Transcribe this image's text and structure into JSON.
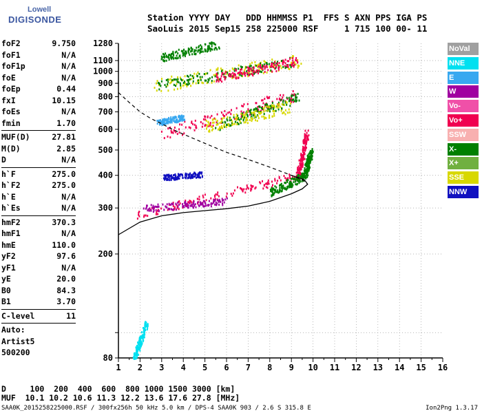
{
  "logo": {
    "line1": "Lowell",
    "line2": "DIGISONDE"
  },
  "header": {
    "line1": "Station YYYY DAY   DDD HHMMSS P1  FFS S AXN PPS IGA PS",
    "line2": "SaoLuis 2015 Sep15 258 225000 RSF     1 715 100 00- 11"
  },
  "params": [
    {
      "k": "foF2",
      "v": "9.750"
    },
    {
      "k": "foF1",
      "v": "N/A"
    },
    {
      "k": "foF1p",
      "v": "N/A"
    },
    {
      "k": "foE",
      "v": "N/A"
    },
    {
      "k": "foEp",
      "v": "0.44"
    },
    {
      "k": "fxI",
      "v": "10.15"
    },
    {
      "k": "foEs",
      "v": "N/A"
    },
    {
      "k": "fmin",
      "v": "1.70"
    },
    {
      "sep": true
    },
    {
      "k": "MUF(D)",
      "v": "27.81"
    },
    {
      "k": "M(D)",
      "v": "2.85"
    },
    {
      "k": "D",
      "v": "N/A"
    },
    {
      "sep": true
    },
    {
      "k": "h`F",
      "v": "275.0"
    },
    {
      "k": "h`F2",
      "v": "275.0"
    },
    {
      "k": "h`E",
      "v": "N/A"
    },
    {
      "k": "h`Es",
      "v": "N/A"
    },
    {
      "sep": true
    },
    {
      "k": "hmF2",
      "v": "370.3"
    },
    {
      "k": "hmF1",
      "v": "N/A"
    },
    {
      "k": "hmE",
      "v": "110.0"
    },
    {
      "k": "yF2",
      "v": "97.6"
    },
    {
      "k": "yF1",
      "v": "N/A"
    },
    {
      "k": "yE",
      "v": "20.0"
    },
    {
      "k": "B0",
      "v": "84.3"
    },
    {
      "k": "B1",
      "v": "3.70"
    },
    {
      "sep": true
    },
    {
      "k": "C-level",
      "v": "11"
    },
    {
      "sep": true
    },
    {
      "k": "Auto:",
      "v": ""
    },
    {
      "k": "Artist5",
      "v": ""
    },
    {
      "k": "500200",
      "v": ""
    }
  ],
  "legend": [
    {
      "name": "NoVal",
      "color": "#a0a0a0"
    },
    {
      "name": "NNE",
      "color": "#00e0f0"
    },
    {
      "name": "E",
      "color": "#38a8f0"
    },
    {
      "name": "W",
      "color": "#a000a0"
    },
    {
      "name": "Vo-",
      "color": "#f050a8"
    },
    {
      "name": "Vo+",
      "color": "#f00050"
    },
    {
      "name": "SSW",
      "color": "#f8b0b0"
    },
    {
      "name": "X-",
      "color": "#008000"
    },
    {
      "name": "X+",
      "color": "#70b040"
    },
    {
      "name": "SSE",
      "color": "#d8d800"
    },
    {
      "name": "NNW",
      "color": "#1010c0"
    }
  ],
  "footer": {
    "line1": "D     100  200  400  600  800 1000 1500 3000 [km]",
    "line2": "MUF  10.1 10.2 10.6 11.3 12.2 13.6 17.6 27.8 [MHz]"
  },
  "bottom": {
    "info": "SAA0K_2015258225000.RSF / 300fx256h 50 kHz 5.0 km / DPS-4 SAA0K 903 / 2.6 S 315.8 E",
    "version": "Ion2Png 1.3.17"
  },
  "chart_data": {
    "type": "scatter",
    "title": "",
    "xlabel": "",
    "ylabel": "",
    "xlim": [
      1,
      16
    ],
    "ylim": [
      80,
      1280
    ],
    "y_scale": "log",
    "x_ticks": [
      1,
      2,
      3,
      4,
      5,
      6,
      7,
      8,
      9,
      10,
      11,
      12,
      13,
      14,
      15,
      16
    ],
    "y_ticks": [
      80,
      100,
      200,
      300,
      400,
      500,
      600,
      700,
      800,
      900,
      1000,
      1100,
      1280
    ],
    "y_tick_labels": [
      "80",
      "",
      "200",
      "300",
      "400",
      "500",
      "600",
      "700",
      "800",
      "900",
      "1000",
      "1100",
      "1280"
    ],
    "grid": true,
    "traces": [
      {
        "name": "F2-O-trace",
        "from": [
          1.9,
          285
        ],
        "to": [
          9.3,
          400
        ],
        "rise_to": [
          9.7,
          590
        ],
        "color": "#f00050",
        "jitter": 12
      },
      {
        "name": "F2-X-trace",
        "from": [
          8.0,
          345
        ],
        "to": [
          9.6,
          400
        ],
        "rise_to": [
          9.9,
          500
        ],
        "color": "#008000",
        "jitter": 12
      },
      {
        "name": "F2-W-trace",
        "from": [
          2.2,
          300
        ],
        "to": [
          6.0,
          320
        ],
        "color": "#a000a0",
        "jitter": 10
      },
      {
        "name": "F2-2hop",
        "from": [
          3.0,
          580
        ],
        "to": [
          9.2,
          820
        ],
        "color": "#f00050",
        "jitter": 18
      },
      {
        "name": "F2-2hop-x",
        "from": [
          5.5,
          620
        ],
        "to": [
          9.3,
          800
        ],
        "color": "#008000",
        "jitter": 14
      },
      {
        "name": "F2-2hop-sse",
        "from": [
          5.0,
          620
        ],
        "to": [
          9.0,
          740
        ],
        "color": "#d8d800",
        "jitter": 18
      },
      {
        "name": "F2-3hop",
        "from": [
          2.5,
          880
        ],
        "to": [
          9.4,
          1110
        ],
        "color": "#d8d800",
        "jitter": 20
      },
      {
        "name": "F2-3hop-x",
        "from": [
          2.8,
          890
        ],
        "to": [
          9.0,
          1090
        ],
        "color": "#008000",
        "jitter": 14
      },
      {
        "name": "F2-3hop-o",
        "from": [
          5.5,
          950
        ],
        "to": [
          9.3,
          1100
        ],
        "color": "#f00050",
        "jitter": 14
      },
      {
        "name": "F2-4hop",
        "from": [
          3.0,
          1140
        ],
        "to": [
          5.6,
          1270
        ],
        "color": "#008000",
        "jitter": 12
      },
      {
        "name": "nnw-blob",
        "from": [
          3.1,
          395
        ],
        "to": [
          4.8,
          405
        ],
        "color": "#1010c0",
        "jitter": 8
      },
      {
        "name": "nne-blob",
        "from": [
          1.7,
          80
        ],
        "to": [
          2.3,
          110
        ],
        "color": "#00e0f0",
        "jitter": 6
      },
      {
        "name": "e-blob",
        "from": [
          2.8,
          640
        ],
        "to": [
          4.0,
          670
        ],
        "color": "#38a8f0",
        "jitter": 8
      }
    ],
    "profile_dashed": {
      "type": "line",
      "x": [
        1.0,
        1.5,
        2.0,
        2.5,
        3.0,
        3.5,
        4.0,
        5.0,
        6.0,
        7.0,
        8.0,
        9.0,
        9.5,
        9.75
      ],
      "y": [
        830,
        760,
        700,
        660,
        630,
        600,
        575,
        530,
        490,
        460,
        430,
        400,
        385,
        370
      ]
    },
    "profile_solid": {
      "type": "line",
      "x": [
        1.0,
        2.0,
        3.0,
        4.0,
        5.0,
        6.0,
        7.0,
        8.0,
        9.0,
        9.5,
        9.75,
        9.6,
        9.0
      ],
      "y": [
        237,
        265,
        280,
        288,
        293,
        298,
        305,
        318,
        340,
        355,
        370,
        385,
        400
      ]
    }
  }
}
